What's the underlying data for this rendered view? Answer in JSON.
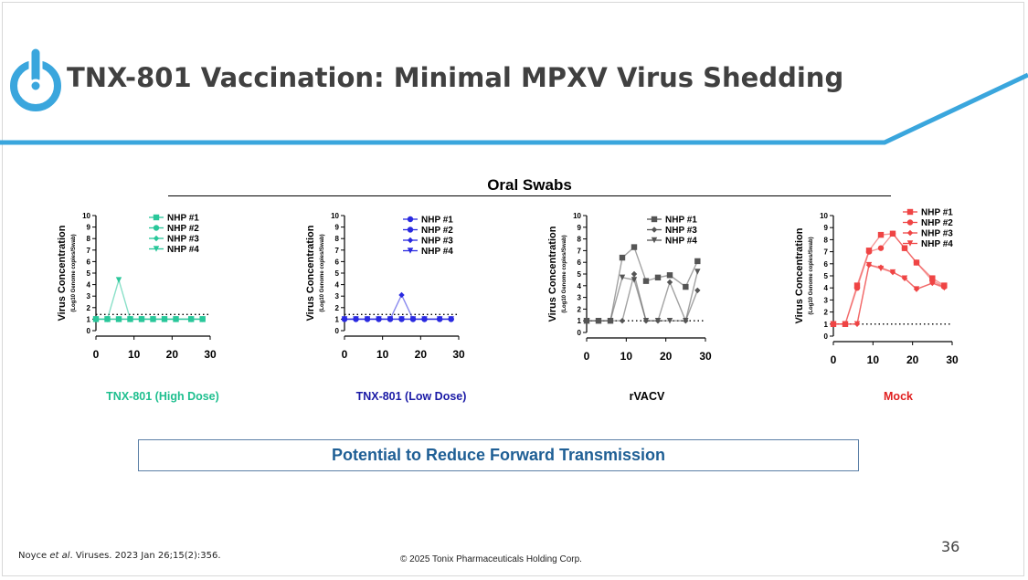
{
  "title": "TNX-801 Vaccination: Minimal MPXV Virus Shedding",
  "section_title": "Oral Swabs",
  "callout": "Potential to Reduce Forward Transmission",
  "page_number": "36",
  "citation": {
    "pre": "Noyce ",
    "italic": "et al",
    "post": ". Viruses. 2023 Jan 26;15(2):356."
  },
  "copyright": "© 2025 Tonix Pharmaceuticals Holding Corp.",
  "colors": {
    "brand_blue": "#3aa6dd",
    "title_gray": "#404040",
    "callout_text": "#1f5f95"
  },
  "chart_data": [
    {
      "type": "line",
      "caption": "TNX-801 (High Dose)",
      "caption_color": "#1fbf8f",
      "ylabel": "Virus Concentration",
      "ylabel_sub": "(Log10 Genome copies/Swab)",
      "ylim": [
        0,
        10
      ],
      "xlim": [
        0,
        30
      ],
      "yticks": [
        "0",
        "1",
        "2",
        "3",
        "4",
        "5",
        "6",
        "7",
        "8",
        "9",
        "10"
      ],
      "xticks": [
        "0",
        "10",
        "20",
        "30"
      ],
      "limit_of_detection": 1.4,
      "x": [
        0,
        3,
        6,
        9,
        12,
        15,
        18,
        21,
        25,
        28
      ],
      "series": [
        {
          "name": "NHP #1",
          "marker": "square",
          "color": "#29c79a",
          "values": [
            1,
            1,
            1,
            1,
            1,
            1,
            1,
            1,
            1,
            1
          ]
        },
        {
          "name": "NHP #2",
          "marker": "circle",
          "color": "#29c79a",
          "values": [
            1,
            1,
            1,
            1,
            1,
            1,
            1,
            1,
            1,
            1
          ]
        },
        {
          "name": "NHP #3",
          "marker": "diamond",
          "color": "#29c79a",
          "values": [
            1,
            1,
            1,
            1,
            1,
            1,
            1,
            1,
            1,
            1
          ]
        },
        {
          "name": "NHP #4",
          "marker": "triangle",
          "color": "#29c79a",
          "values": [
            1,
            1,
            4.4,
            1,
            1,
            1,
            1,
            1,
            1,
            1
          ]
        }
      ]
    },
    {
      "type": "line",
      "caption": "TNX-801 (Low Dose)",
      "caption_color": "#1a1aa6",
      "ylabel": "Virus Concentration",
      "ylabel_sub": "(Log10 Genome copies/Swab)",
      "ylim": [
        0,
        10
      ],
      "xlim": [
        0,
        30
      ],
      "yticks": [
        "0",
        "1",
        "2",
        "3",
        "4",
        "5",
        "6",
        "7",
        "8",
        "9",
        "10"
      ],
      "xticks": [
        "0",
        "10",
        "20",
        "30"
      ],
      "limit_of_detection": 1.4,
      "x": [
        0,
        3,
        6,
        9,
        12,
        15,
        18,
        21,
        25,
        28
      ],
      "series": [
        {
          "name": "NHP #1",
          "marker": "circle",
          "color": "#2a2ae0",
          "values": [
            1,
            1,
            1,
            1,
            1,
            1,
            1,
            1,
            1,
            1
          ]
        },
        {
          "name": "NHP #2",
          "marker": "circle",
          "color": "#2a2ae0",
          "values": [
            1,
            1,
            1,
            1,
            1,
            1,
            1,
            1,
            1,
            1
          ]
        },
        {
          "name": "NHP #3",
          "marker": "diamond",
          "color": "#2a2ae0",
          "values": [
            1,
            1,
            1,
            1,
            1,
            3.1,
            1,
            1,
            1,
            1
          ]
        },
        {
          "name": "NHP #4",
          "marker": "triangle",
          "color": "#2a2ae0",
          "values": [
            1,
            1,
            1,
            1,
            1,
            1,
            1,
            1,
            1,
            1
          ]
        }
      ]
    },
    {
      "type": "line",
      "caption": "rVACV",
      "caption_color": "#000000",
      "ylabel": "Virus Concentration",
      "ylabel_sub": "(Log10 Genome copies/Swab)",
      "ylim": [
        0,
        10
      ],
      "xlim": [
        0,
        30
      ],
      "yticks": [
        "0",
        "1",
        "2",
        "3",
        "4",
        "5",
        "6",
        "7",
        "8",
        "9",
        "10"
      ],
      "xticks": [
        "0",
        "10",
        "20",
        "30"
      ],
      "limit_of_detection": 1,
      "x": [
        0,
        3,
        6,
        9,
        12,
        15,
        18,
        21,
        25,
        28
      ],
      "series": [
        {
          "name": "NHP #1",
          "marker": "square",
          "color": "#555555",
          "values": [
            1,
            1,
            1,
            6.4,
            7.3,
            4.4,
            4.7,
            4.9,
            3.9,
            6.1
          ]
        },
        {
          "name": "NHP #3",
          "marker": "diamond",
          "color": "#555555",
          "values": [
            1,
            1,
            1,
            1,
            5.0,
            1,
            1,
            4.3,
            1,
            3.6
          ]
        },
        {
          "name": "NHP #4",
          "marker": "triangle",
          "color": "#555555",
          "values": [
            1,
            1,
            1,
            4.7,
            4.5,
            1,
            1,
            1,
            1,
            5.2
          ]
        }
      ]
    },
    {
      "type": "line",
      "caption": "Mock",
      "caption_color": "#e02020",
      "ylabel": "Virus Concentration",
      "ylabel_sub": "(Log10 Genome copies/Swab)",
      "ylim": [
        0,
        10
      ],
      "xlim": [
        0,
        30
      ],
      "yticks": [
        "0",
        "1",
        "2",
        "3",
        "4",
        "5",
        "6",
        "7",
        "8",
        "9",
        "10"
      ],
      "xticks": [
        "0",
        "10",
        "20",
        "30"
      ],
      "limit_of_detection": 1,
      "x": [
        0,
        3,
        6,
        9,
        12,
        15,
        18,
        21,
        25,
        28
      ],
      "series": [
        {
          "name": "NHP #1",
          "marker": "square",
          "color": "#ef4444",
          "values": [
            1,
            1,
            4.2,
            7.1,
            8.4,
            8.5,
            7.3,
            6.1,
            4.8,
            4.2
          ]
        },
        {
          "name": "NHP #2",
          "marker": "circle",
          "color": "#ef4444",
          "values": [
            1,
            1,
            4.0,
            7.0,
            7.3,
            8.5,
            7.3,
            6.1,
            4.6,
            4.1
          ]
        },
        {
          "name": "NHP #3",
          "marker": "diamond",
          "color": "#ef4444",
          "values": [
            1,
            1,
            1,
            5.9,
            5.7,
            5.3,
            4.8,
            3.9,
            4.4,
            4.1
          ]
        },
        {
          "name": "NHP #4",
          "marker": "triangle",
          "color": "#ef4444",
          "values": [
            1,
            1,
            1,
            5.9,
            5.6,
            5.3,
            4.8,
            3.9,
            4.4,
            4.0
          ]
        }
      ]
    }
  ]
}
